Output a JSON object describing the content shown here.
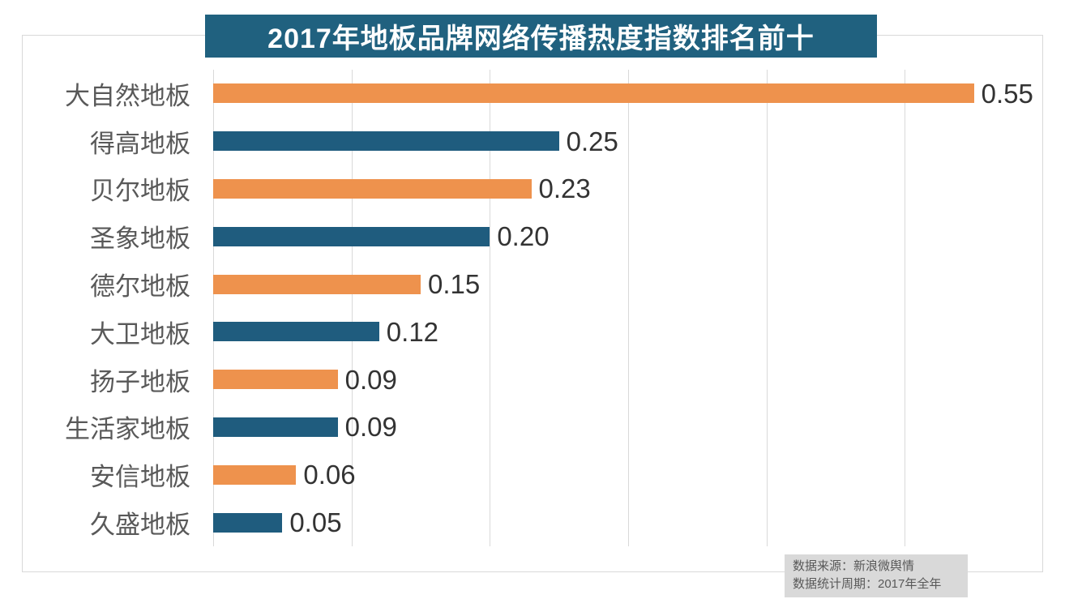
{
  "page": {
    "background": "#FFFFFF"
  },
  "header": {
    "title": "2017年地板品牌网络传播热度指数排名前十"
  },
  "footer": {
    "source_line": "数据来源：新浪微舆情",
    "period_line": "数据统计周期：2017年全年"
  },
  "colors": {
    "banner_bg": "#20617F",
    "bar_orange": "#EE924D",
    "bar_blue": "#1F5C7E",
    "gridline": "#D9D9D9",
    "frame_border": "#D9D9D9",
    "category_label": "#595959",
    "value_label": "#333333",
    "footer_bg": "#D9D9D9",
    "footer_text": "#595959",
    "title_text": "#FFFFFF"
  },
  "chart_data": {
    "type": "bar",
    "orientation": "horizontal",
    "title": "2017年地板品牌网络传播热度指数排名前十",
    "categories": [
      "大自然地板",
      "得高地板",
      "贝尔地板",
      "圣象地板",
      "德尔地板",
      "大卫地板",
      "扬子地板",
      "生活家地板",
      "安信地板",
      "久盛地板"
    ],
    "values": [
      0.55,
      0.25,
      0.23,
      0.2,
      0.15,
      0.12,
      0.09,
      0.09,
      0.06,
      0.05
    ],
    "value_labels": [
      "0.55",
      "0.25",
      "0.23",
      "0.20",
      "0.15",
      "0.12",
      "0.09",
      "0.09",
      "0.06",
      "0.05"
    ],
    "bar_color_pattern": [
      "#EE924D",
      "#1F5C7E"
    ],
    "xlabel": "",
    "ylabel": "",
    "xlim": [
      0,
      0.6
    ],
    "gridline_interval": 0.1,
    "grid": "vertical-only",
    "legend": null,
    "value_labels_position": "right-of-bar",
    "source": "数据来源：新浪微舆情",
    "period": "数据统计周期：2017年全年"
  }
}
